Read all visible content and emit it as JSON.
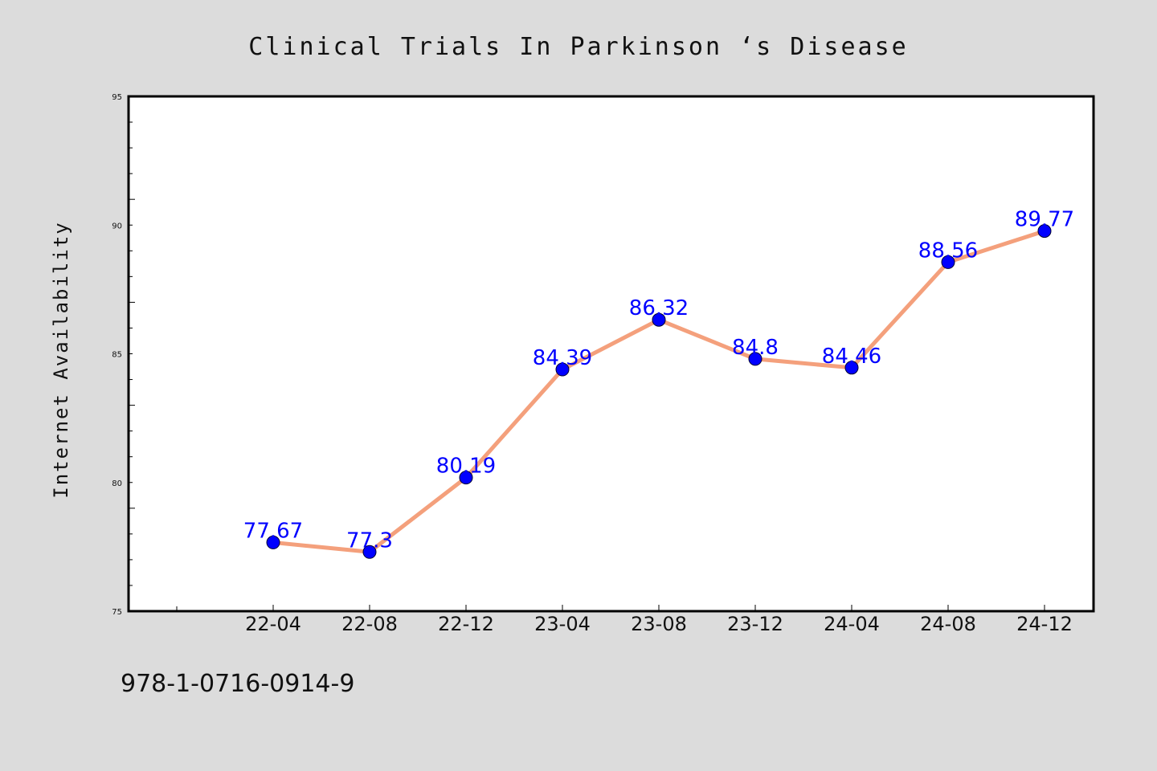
{
  "chart_data": {
    "type": "line",
    "title": "Clinical Trials In Parkinson ‘s Disease",
    "xlabel": "",
    "ylabel": "Internet Availability",
    "categories": [
      "22-04",
      "22-08",
      "22-12",
      "23-04",
      "23-08",
      "23-12",
      "24-04",
      "24-08",
      "24-12"
    ],
    "values": [
      77.67,
      77.3,
      80.19,
      84.39,
      86.32,
      84.8,
      84.46,
      88.56,
      89.77
    ],
    "data_labels": [
      "77.67",
      "77.3",
      "80.19",
      "84.39",
      "86.32",
      "84.8",
      "84.46",
      "88.56",
      "89.77"
    ],
    "ylim": [
      75,
      95
    ],
    "yticks": [
      "75",
      "80",
      "85",
      "90",
      "95"
    ],
    "grid": false,
    "legend": "none",
    "colors": {
      "line": "#f4a07c",
      "marker": "#0000ff",
      "data_label": "#0000ff",
      "plot_background": "#ffffff",
      "page_background": "#dcdcdc"
    }
  },
  "footer": {
    "isbn": "978-1-0716-0914-9"
  }
}
